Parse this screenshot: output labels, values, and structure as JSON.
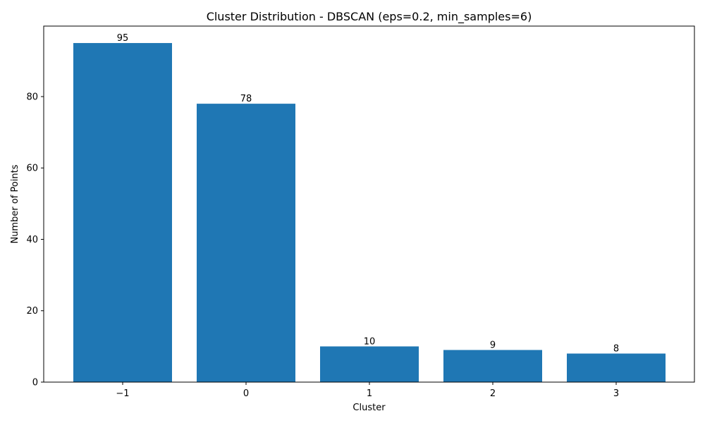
{
  "chart_data": {
    "type": "bar",
    "title": "Cluster Distribution - DBSCAN (eps=0.2, min_samples=6)",
    "xlabel": "Cluster",
    "ylabel": "Number of Points",
    "categories": [
      "−1",
      "0",
      "1",
      "2",
      "3"
    ],
    "values": [
      95,
      78,
      10,
      9,
      8
    ],
    "ylim": [
      0,
      99.75
    ],
    "yticks": [
      0,
      20,
      40,
      60,
      80
    ],
    "grid": false,
    "legend": "none",
    "bar_color": "#1f77b4"
  }
}
